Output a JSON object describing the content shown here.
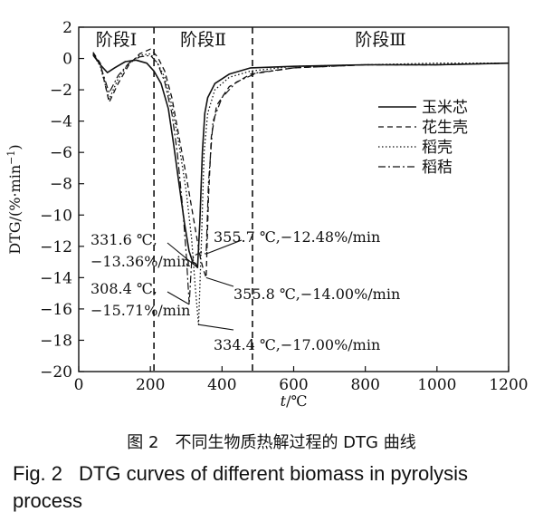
{
  "chart_data": {
    "type": "line",
    "xlabel_italic": "t",
    "xlabel_unit": "/℃",
    "ylabel_main": "DTG/(%·min",
    "ylabel_sup": "−1",
    "ylabel_end": ")",
    "xlim": [
      0,
      1200
    ],
    "ylim": [
      -20,
      2
    ],
    "x_ticks": [
      0,
      200,
      400,
      600,
      800,
      1000,
      1200
    ],
    "y_ticks": [
      2,
      0,
      -2,
      -4,
      -6,
      -8,
      -10,
      -12,
      -14,
      -16,
      -18,
      -20
    ],
    "grid": false,
    "stage_dividers": [
      210,
      485
    ],
    "stage_labels": [
      "阶段Ⅰ",
      "阶段Ⅱ",
      "阶段Ⅲ"
    ],
    "legend_position": "right-middle",
    "series": [
      {
        "name": "玉米芯",
        "dash": "solid",
        "x": [
          40,
          60,
          80,
          100,
          130,
          160,
          190,
          210,
          230,
          250,
          265,
          280,
          295,
          308,
          318,
          326,
          331.6,
          338,
          345,
          352,
          360,
          380,
          420,
          480,
          600,
          800,
          1000,
          1200
        ],
        "y": [
          0.3,
          -0.4,
          -0.9,
          -0.6,
          -0.2,
          -0.1,
          -0.3,
          -0.8,
          -1.6,
          -3.2,
          -5.5,
          -8.0,
          -10.5,
          -12.3,
          -13.0,
          -13.1,
          -13.36,
          -10.5,
          -6.0,
          -3.5,
          -2.5,
          -1.6,
          -1.0,
          -0.6,
          -0.5,
          -0.4,
          -0.4,
          -0.3
        ]
      },
      {
        "name": "花生壳",
        "dash": "dashed",
        "x": [
          40,
          60,
          85,
          110,
          140,
          170,
          200,
          220,
          240,
          260,
          280,
          300,
          315,
          330,
          340,
          348,
          355.8,
          362,
          370,
          385,
          420,
          480,
          600,
          800,
          1000,
          1200
        ],
        "y": [
          0.4,
          -0.3,
          -2.8,
          -1.6,
          -0.4,
          0.3,
          0.6,
          0.1,
          -0.8,
          -2.5,
          -5.0,
          -7.5,
          -9.5,
          -11.5,
          -12.8,
          -13.5,
          -14.0,
          -9.0,
          -5.0,
          -3.0,
          -1.8,
          -1.0,
          -0.6,
          -0.4,
          -0.4,
          -0.3
        ]
      },
      {
        "name": "稻壳",
        "dash": "dotted",
        "x": [
          40,
          60,
          85,
          110,
          140,
          170,
          200,
          220,
          240,
          260,
          280,
          300,
          315,
          325,
          334.4,
          342,
          350,
          360,
          380,
          420,
          480,
          600,
          800,
          1000,
          1200
        ],
        "y": [
          0.3,
          -0.5,
          -2.6,
          -1.3,
          -0.3,
          0.2,
          0.3,
          -0.3,
          -1.2,
          -3.0,
          -5.5,
          -8.5,
          -11.5,
          -14.5,
          -17.0,
          -12.0,
          -6.0,
          -3.5,
          -2.0,
          -1.2,
          -0.8,
          -0.5,
          -0.4,
          -0.3,
          -0.3
        ]
      },
      {
        "name": "稻秸",
        "dash": "dashdot",
        "x": [
          40,
          60,
          85,
          110,
          140,
          170,
          200,
          220,
          240,
          260,
          275,
          290,
          300,
          308.4,
          315,
          322,
          330,
          340,
          350,
          355.7,
          362,
          375,
          400,
          440,
          500,
          600,
          800,
          1000,
          1200
        ],
        "y": [
          0.2,
          -0.4,
          -2.2,
          -1.1,
          -0.3,
          0.1,
          0.2,
          -0.3,
          -1.5,
          -3.5,
          -6.0,
          -9.5,
          -12.5,
          -15.71,
          -13.0,
          -12.6,
          -12.5,
          -12.4,
          -12.45,
          -12.48,
          -8.0,
          -4.0,
          -2.5,
          -1.5,
          -0.9,
          -0.6,
          -0.4,
          -0.4,
          -0.3
        ]
      }
    ],
    "annotations": [
      {
        "lines": [
          "331.6 ℃,",
          "−13.36%/min"
        ],
        "point": [
          331.6,
          -13.36
        ]
      },
      {
        "lines": [
          "308.4 ℃,",
          "−15.71%/min"
        ],
        "point": [
          308.4,
          -15.71
        ]
      },
      {
        "lines": [
          "355.7 ℃,−12.48%/min"
        ],
        "point": [
          355.7,
          -12.48
        ]
      },
      {
        "lines": [
          "355.8 ℃,−14.00%/min"
        ],
        "point": [
          355.8,
          -14.0
        ]
      },
      {
        "lines": [
          "334.4 ℃,−17.00%/min"
        ],
        "point": [
          334.4,
          -17.0
        ]
      }
    ]
  },
  "caption": {
    "zh": "图 2　不同生物质热解过程的 DTG 曲线",
    "en_num": "Fig. 2",
    "en_text": "DTG curves of different biomass in pyrolysis process"
  }
}
